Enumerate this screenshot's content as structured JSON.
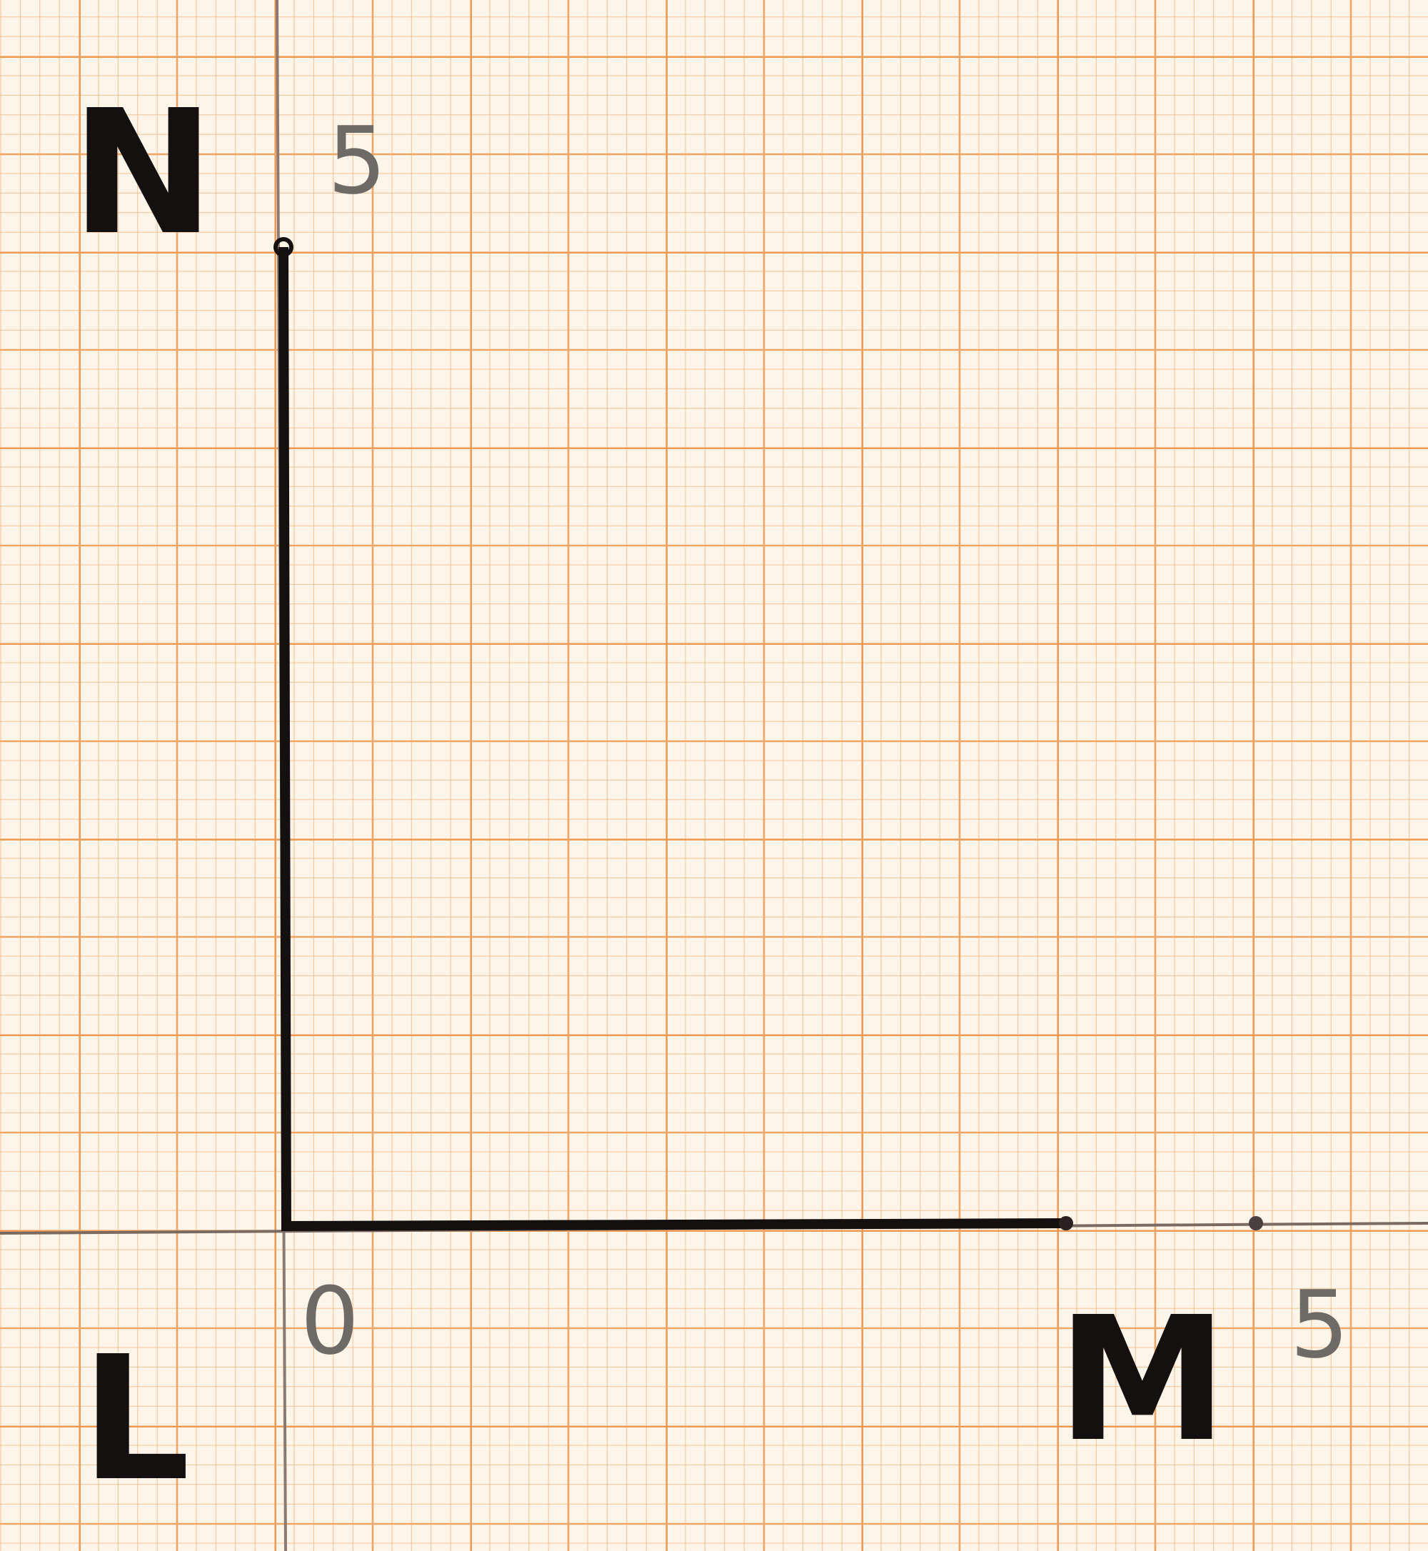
{
  "labels": {
    "top_letter": "N",
    "top_number": "5",
    "origin_number": "0",
    "corner_letter": "L",
    "right_letter": "M",
    "right_number": "5"
  }
}
